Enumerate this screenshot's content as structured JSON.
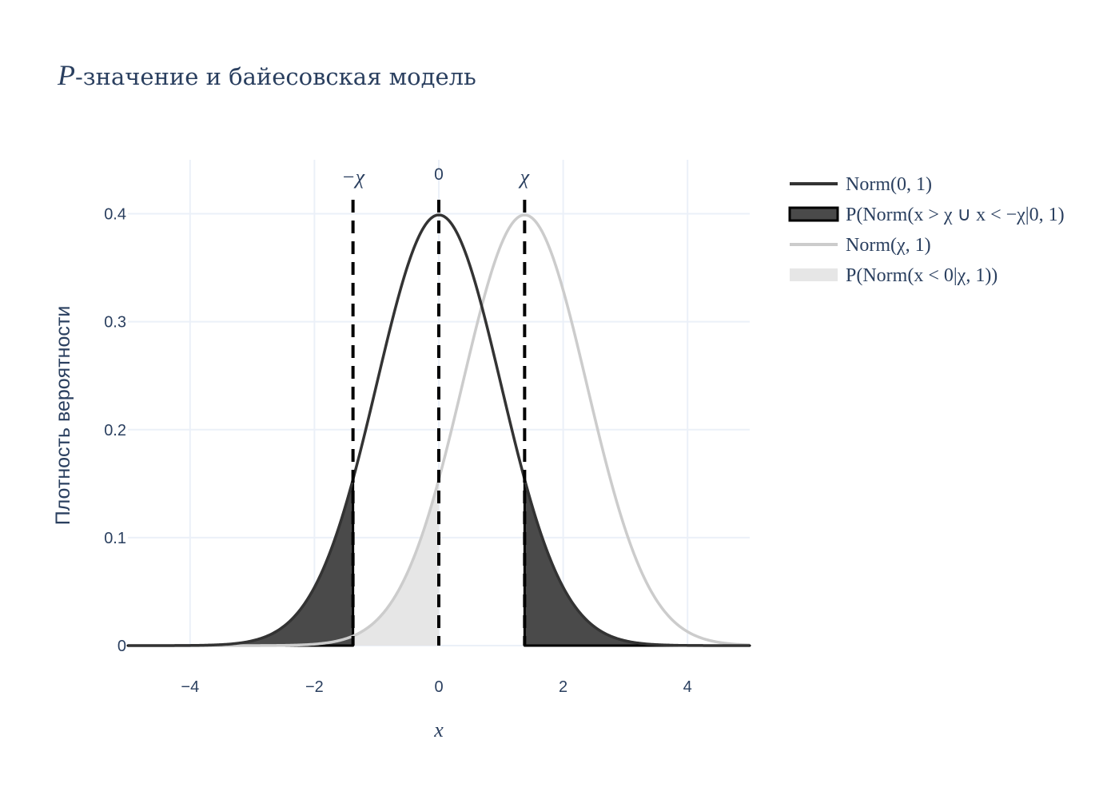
{
  "chart_data": {
    "type": "line",
    "title_prefix": "P",
    "title_rest": "-значение и байесовская модель",
    "xlabel": "x",
    "ylabel": "Плотность вероятности",
    "xlim": [
      -5,
      5
    ],
    "ylim": [
      0,
      0.45
    ],
    "x_ticks": [
      -4,
      -2,
      0,
      2,
      4
    ],
    "x_tick_labels": [
      "−4",
      "−2",
      "0",
      "2",
      "4"
    ],
    "y_ticks": [
      0,
      0.1,
      0.2,
      0.3,
      0.4
    ],
    "y_tick_labels": [
      "0",
      "0.1",
      "0.2",
      "0.3",
      "0.4"
    ],
    "grid": true,
    "legend_position": "right",
    "chi": 1.38,
    "vertical_lines": [
      {
        "x": -1.38,
        "label": "−χ"
      },
      {
        "x": 0,
        "label": "0"
      },
      {
        "x": 1.38,
        "label": "χ"
      }
    ],
    "series": [
      {
        "name": "Norm(0, 1)",
        "kind": "line",
        "mean": 0,
        "sd": 1,
        "color": "#333333"
      },
      {
        "name": "P(Norm(x > χ ∪ x < −χ|0, 1)",
        "kind": "area",
        "regions": [
          [
            -5,
            -1.38
          ],
          [
            1.38,
            5
          ]
        ],
        "mean": 0,
        "sd": 1,
        "color": "#4a4a4a"
      },
      {
        "name": "Norm(χ, 1)",
        "kind": "line",
        "mean": 1.38,
        "sd": 1,
        "color": "#cccccc"
      },
      {
        "name": "P(Norm(x < 0|χ, 1))",
        "kind": "area",
        "regions": [
          [
            -5,
            0
          ]
        ],
        "mean": 1.38,
        "sd": 1,
        "color": "#e6e6e6"
      }
    ]
  }
}
